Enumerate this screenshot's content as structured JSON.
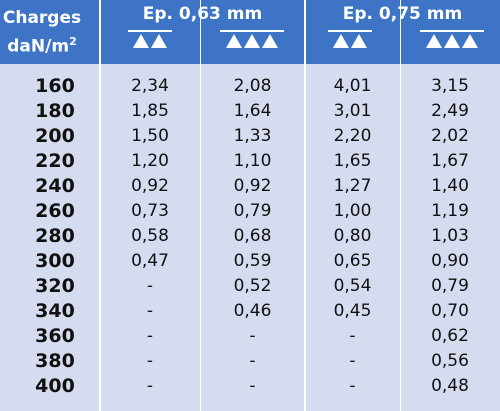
{
  "header": {
    "charges_line1": "Charges",
    "charges_line2": "daN/m",
    "charges_sup": "2",
    "group1": "Ep. 0,63 mm",
    "group2": "Ep. 0,75 mm",
    "icons": [
      "double-support-triangles-icon",
      "triple-support-triangles-icon"
    ]
  },
  "rows": [
    {
      "charge": "160",
      "v": [
        "2,34",
        "2,08",
        "4,01",
        "3,15"
      ]
    },
    {
      "charge": "180",
      "v": [
        "1,85",
        "1,64",
        "3,01",
        "2,49"
      ]
    },
    {
      "charge": "200",
      "v": [
        "1,50",
        "1,33",
        "2,20",
        "2,02"
      ]
    },
    {
      "charge": "220",
      "v": [
        "1,20",
        "1,10",
        "1,65",
        "1,67"
      ]
    },
    {
      "charge": "240",
      "v": [
        "0,92",
        "0,92",
        "1,27",
        "1,40"
      ]
    },
    {
      "charge": "260",
      "v": [
        "0,73",
        "0,79",
        "1,00",
        "1,19"
      ]
    },
    {
      "charge": "280",
      "v": [
        "0,58",
        "0,68",
        "0,80",
        "1,03"
      ]
    },
    {
      "charge": "300",
      "v": [
        "0,47",
        "0,59",
        "0,65",
        "0,90"
      ]
    },
    {
      "charge": "320",
      "v": [
        "-",
        "0,52",
        "0,54",
        "0,79"
      ]
    },
    {
      "charge": "340",
      "v": [
        "-",
        "0,46",
        "0,45",
        "0,70"
      ]
    },
    {
      "charge": "360",
      "v": [
        "-",
        "-",
        "-",
        "0,62"
      ]
    },
    {
      "charge": "380",
      "v": [
        "-",
        "-",
        "-",
        "0,56"
      ]
    },
    {
      "charge": "400",
      "v": [
        "-",
        "-",
        "-",
        "0,48"
      ]
    }
  ]
}
